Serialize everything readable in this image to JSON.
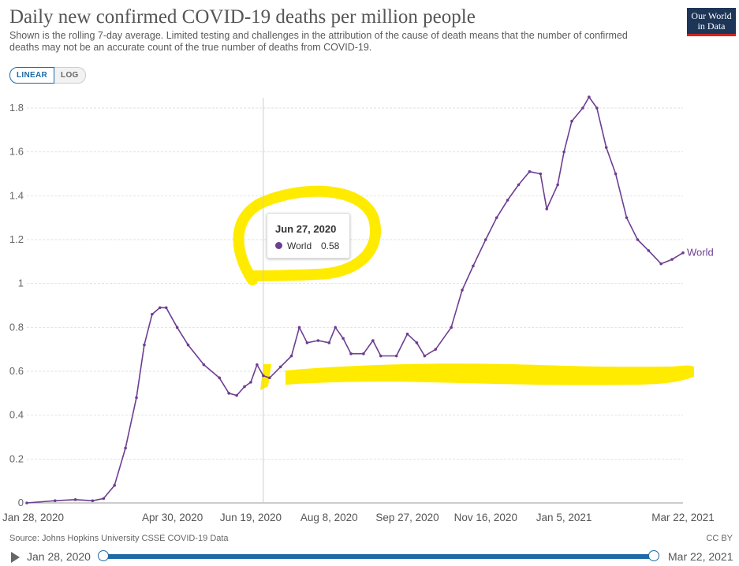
{
  "header": {
    "title": "Daily new confirmed COVID-19 deaths per million people",
    "subtitle": "Shown is the rolling 7-day average. Limited testing and challenges in the attribution of the cause of death means that the number of confirmed deaths may not be an accurate count of the true number of deaths from COVID-19.",
    "logo_line1": "Our World",
    "logo_line2": "in Data"
  },
  "controls": {
    "linear_label": "LINEAR",
    "log_label": "LOG",
    "active": "LINEAR"
  },
  "tooltip": {
    "date": "Jun 27, 2020",
    "series": "World",
    "value": "0.58"
  },
  "footer": {
    "source": "Source: Johns Hopkins University CSSE COVID-19 Data",
    "license": "CC BY"
  },
  "timeline": {
    "start": "Jan 28, 2020",
    "end": "Mar 22, 2021"
  },
  "colors": {
    "series": "#6d3e91",
    "accent": "#1d6aa8",
    "highlight": "#ffeb00"
  },
  "chart_data": {
    "type": "line",
    "y_ticks": [
      "0",
      "0.2",
      "0.4",
      "0.6",
      "0.8",
      "1",
      "1.2",
      "1.4",
      "1.6",
      "1.8"
    ],
    "x_ticks": [
      "Jan 28, 2020",
      "Apr 30, 2020",
      "Jun 19, 2020",
      "Aug 8, 2020",
      "Sep 27, 2020",
      "Nov 16, 2020",
      "Jan 5, 2021",
      "Mar 22, 2021"
    ],
    "ylim": [
      0,
      1.85
    ],
    "grid": "horizontal",
    "series": [
      {
        "name": "World",
        "points": [
          [
            "Jan 28, 2020",
            0.0
          ],
          [
            "Feb 15, 2020",
            0.01
          ],
          [
            "Feb 28, 2020",
            0.015
          ],
          [
            "Mar 10, 2020",
            0.01
          ],
          [
            "Mar 17, 2020",
            0.02
          ],
          [
            "Mar 24, 2020",
            0.08
          ],
          [
            "Mar 31, 2020",
            0.25
          ],
          [
            "Apr 7, 2020",
            0.48
          ],
          [
            "Apr 12, 2020",
            0.72
          ],
          [
            "Apr 17, 2020",
            0.86
          ],
          [
            "Apr 22, 2020",
            0.89
          ],
          [
            "Apr 26, 2020",
            0.89
          ],
          [
            "May 3, 2020",
            0.8
          ],
          [
            "May 10, 2020",
            0.72
          ],
          [
            "May 20, 2020",
            0.63
          ],
          [
            "May 30, 2020",
            0.57
          ],
          [
            "Jun 5, 2020",
            0.5
          ],
          [
            "Jun 10, 2020",
            0.49
          ],
          [
            "Jun 15, 2020",
            0.53
          ],
          [
            "Jun 19, 2020",
            0.55
          ],
          [
            "Jun 23, 2020",
            0.63
          ],
          [
            "Jun 27, 2020",
            0.58
          ],
          [
            "Jul 1, 2020",
            0.57
          ],
          [
            "Jul 8, 2020",
            0.62
          ],
          [
            "Jul 15, 2020",
            0.67
          ],
          [
            "Jul 20, 2020",
            0.8
          ],
          [
            "Jul 25, 2020",
            0.73
          ],
          [
            "Aug 1, 2020",
            0.74
          ],
          [
            "Aug 8, 2020",
            0.73
          ],
          [
            "Aug 12, 2020",
            0.8
          ],
          [
            "Aug 17, 2020",
            0.75
          ],
          [
            "Aug 22, 2020",
            0.68
          ],
          [
            "Aug 30, 2020",
            0.68
          ],
          [
            "Sep 5, 2020",
            0.74
          ],
          [
            "Sep 10, 2020",
            0.67
          ],
          [
            "Sep 20, 2020",
            0.67
          ],
          [
            "Sep 27, 2020",
            0.77
          ],
          [
            "Oct 3, 2020",
            0.73
          ],
          [
            "Oct 8, 2020",
            0.67
          ],
          [
            "Oct 15, 2020",
            0.7
          ],
          [
            "Oct 25, 2020",
            0.8
          ],
          [
            "Nov 1, 2020",
            0.97
          ],
          [
            "Nov 8, 2020",
            1.08
          ],
          [
            "Nov 16, 2020",
            1.2
          ],
          [
            "Nov 23, 2020",
            1.3
          ],
          [
            "Nov 30, 2020",
            1.38
          ],
          [
            "Dec 7, 2020",
            1.45
          ],
          [
            "Dec 14, 2020",
            1.51
          ],
          [
            "Dec 21, 2020",
            1.5
          ],
          [
            "Dec 25, 2020",
            1.34
          ],
          [
            "Jan 1, 2021",
            1.45
          ],
          [
            "Jan 5, 2021",
            1.6
          ],
          [
            "Jan 10, 2021",
            1.74
          ],
          [
            "Jan 17, 2021",
            1.8
          ],
          [
            "Jan 21, 2021",
            1.85
          ],
          [
            "Jan 26, 2021",
            1.8
          ],
          [
            "Feb 1, 2021",
            1.62
          ],
          [
            "Feb 7, 2021",
            1.5
          ],
          [
            "Feb 14, 2021",
            1.3
          ],
          [
            "Feb 21, 2021",
            1.2
          ],
          [
            "Feb 28, 2021",
            1.15
          ],
          [
            "Mar 8, 2021",
            1.09
          ],
          [
            "Mar 15, 2021",
            1.11
          ],
          [
            "Mar 22, 2021",
            1.14
          ]
        ]
      }
    ],
    "end_label": "World"
  }
}
